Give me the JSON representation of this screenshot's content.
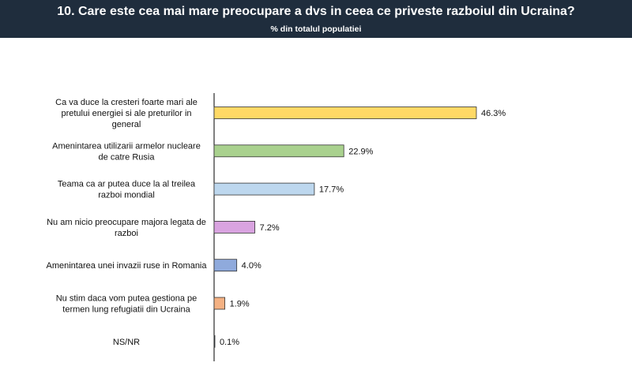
{
  "header": {
    "title": "10. Care este cea mai mare preocupare a dvs in ceea ce priveste razboiul din Ucraina?",
    "subtitle": "% din totalul populatiei"
  },
  "chart_data": {
    "type": "bar",
    "orientation": "horizontal",
    "title": "10. Care este cea mai mare preocupare a dvs in ceea ce priveste razboiul din Ucraina?",
    "subtitle": "% din totalul populatiei",
    "xlim": [
      0,
      50
    ],
    "grid": false,
    "categories": [
      "Ca va duce la cresteri foarte mari ale pretului energiei si ale preturilor in general",
      "Amenintarea utilizarii armelor nucleare de catre Rusia",
      "Teama ca ar putea duce la al treilea razboi mondial",
      "Nu am nicio preocupare majora legata de razboi",
      "Amenintarea unei invazii ruse in Romania",
      "Nu stim daca vom putea gestiona pe termen lung refugiatii din Ucraina",
      "NS/NR"
    ],
    "category_lines": [
      [
        "Ca va duce la cresteri foarte mari ale",
        "pretului energiei si ale preturilor in",
        "general"
      ],
      [
        "Amenintarea utilizarii armelor nucleare",
        "de catre Rusia"
      ],
      [
        "Teama ca ar putea duce la al treilea",
        "razboi mondial"
      ],
      [
        "Nu am nicio preocupare majora legata de",
        "razboi"
      ],
      [
        "Amenintarea unei invazii ruse in Romania"
      ],
      [
        "Nu stim daca vom putea gestiona pe",
        "termen lung refugiatii din Ucraina"
      ],
      [
        "NS/NR"
      ]
    ],
    "values": [
      46.3,
      22.9,
      17.7,
      7.2,
      4.0,
      1.9,
      0.1
    ],
    "value_labels": [
      "46.3%",
      "22.9%",
      "17.7%",
      "7.2%",
      "4.0%",
      "1.9%",
      "0.1%"
    ],
    "colors": [
      "#ffd966",
      "#a9d18e",
      "#bdd7ee",
      "#d9a3e0",
      "#8faadc",
      "#f4b183",
      "#1f2d3d"
    ]
  }
}
